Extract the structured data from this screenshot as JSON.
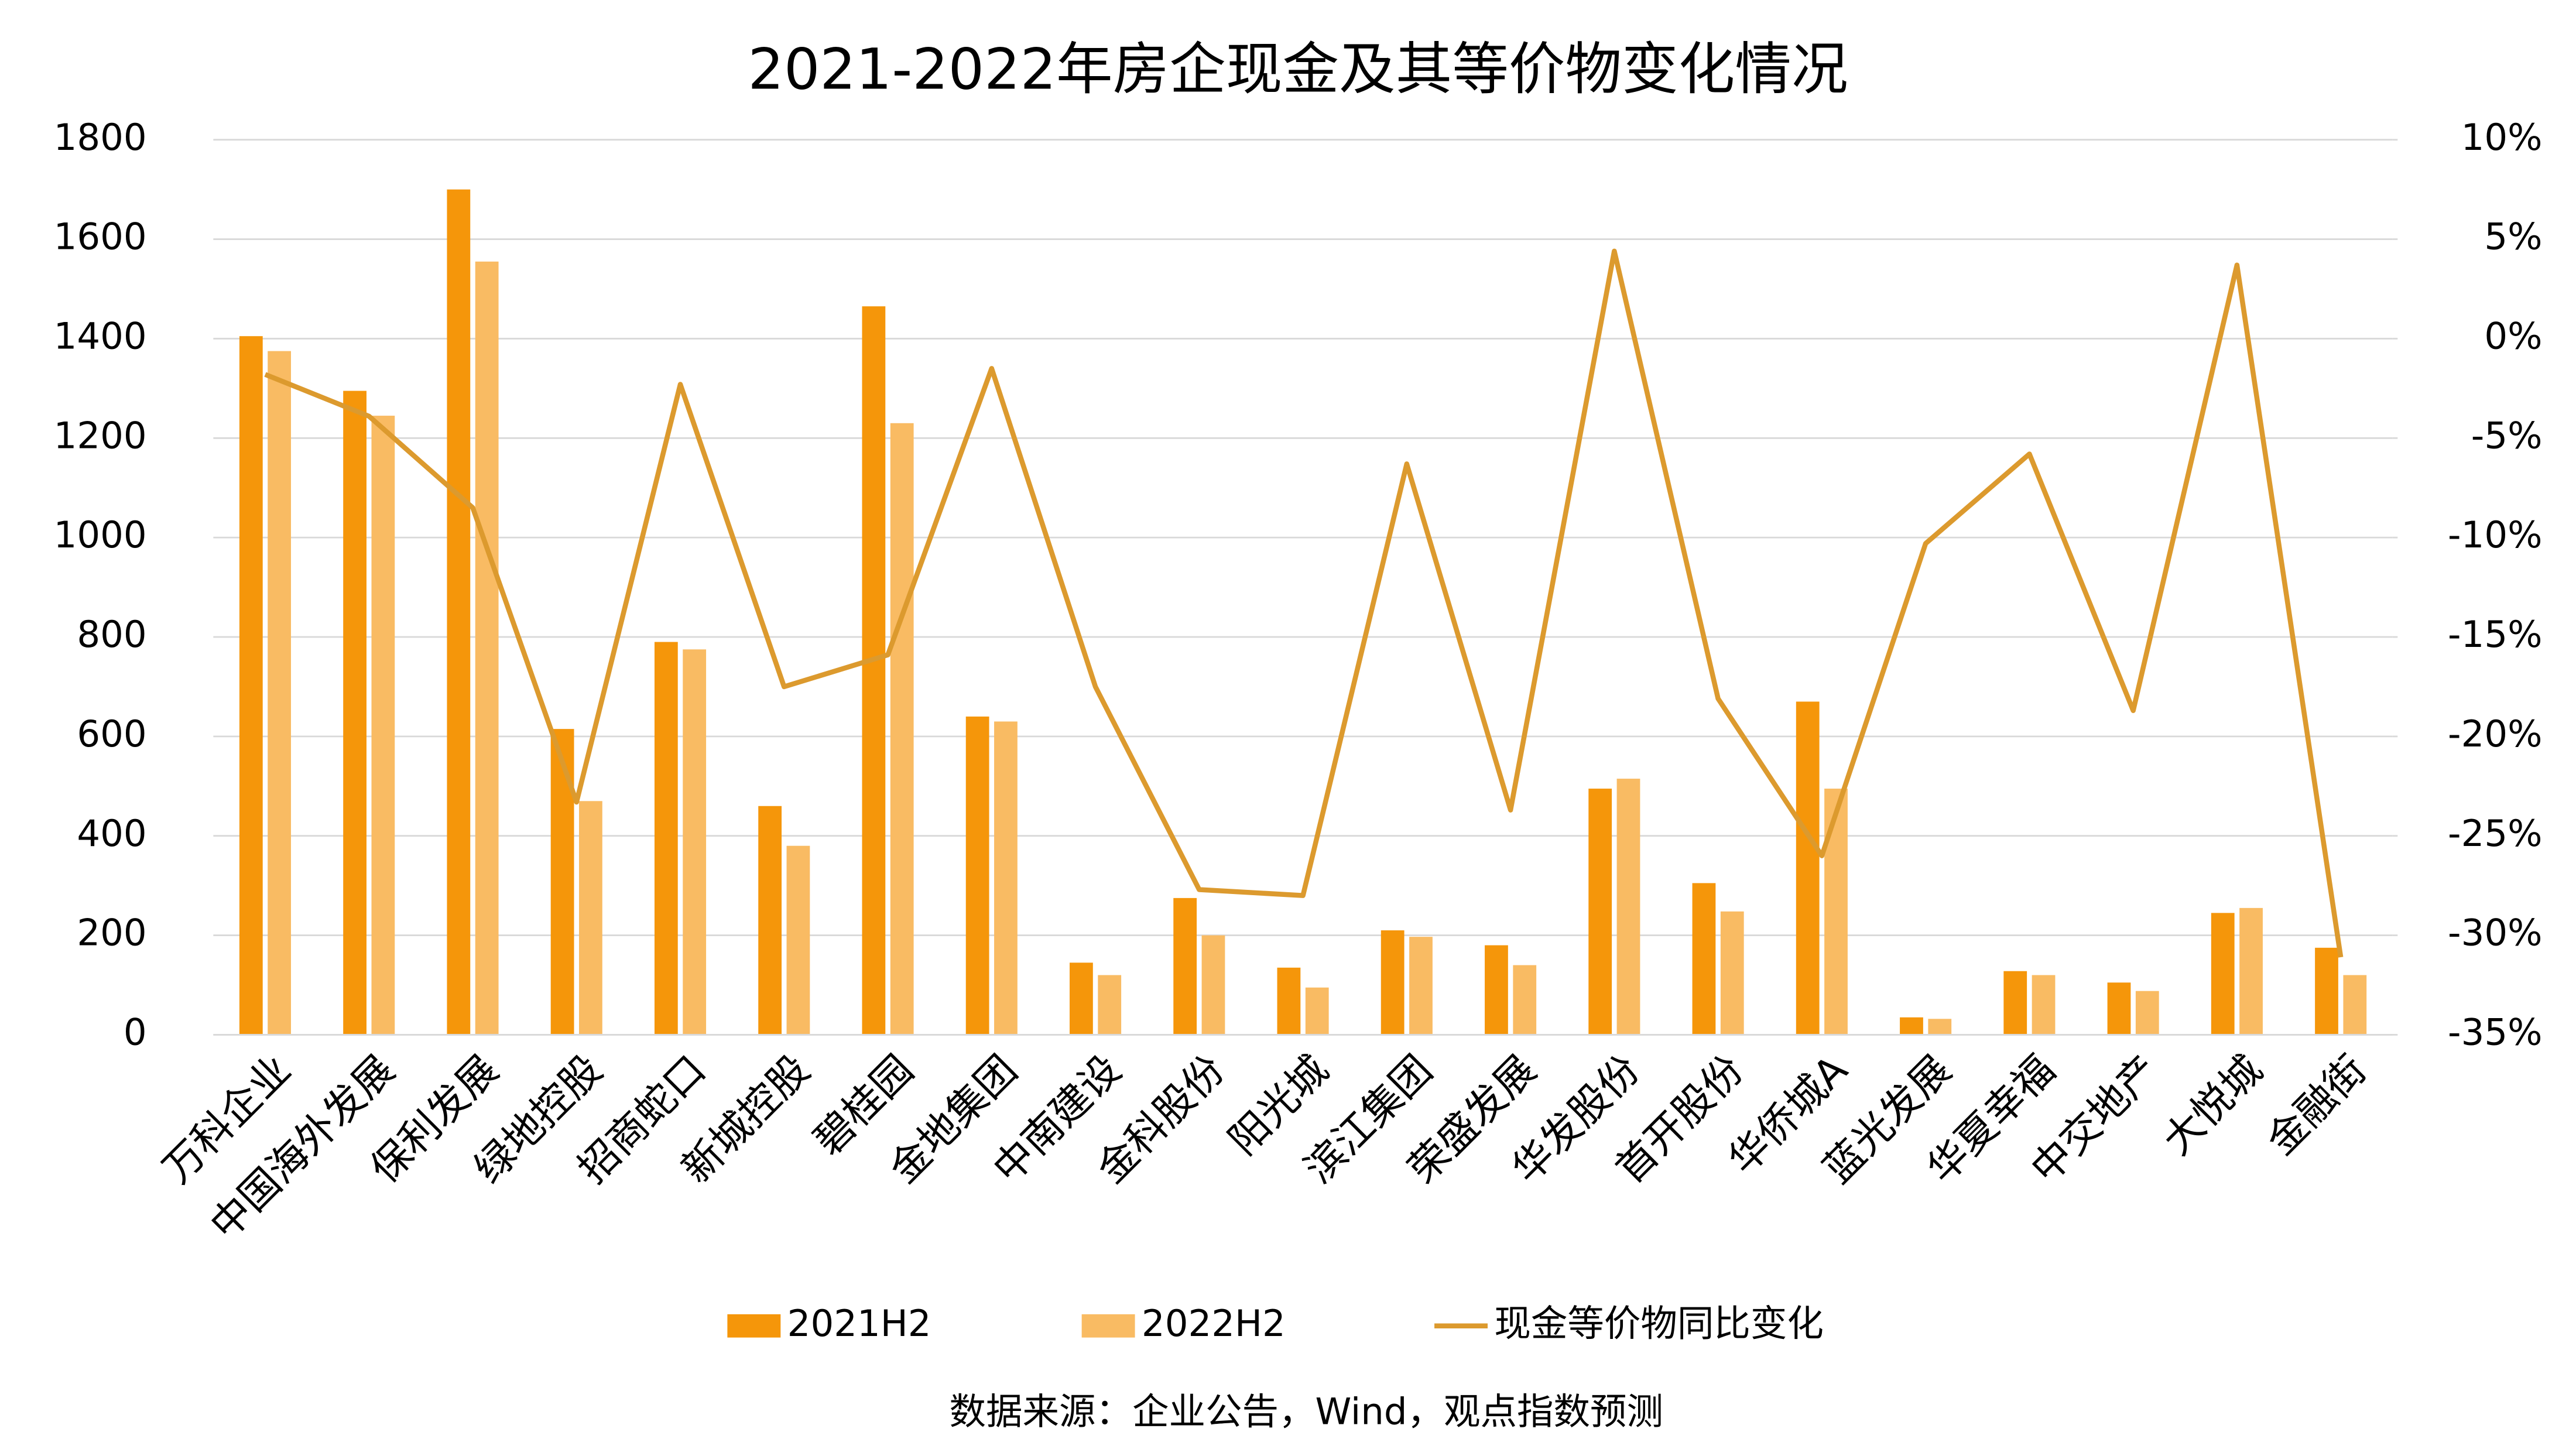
{
  "chart_data": {
    "type": "bar",
    "title": "2021-2022年房企现金及其等价物变化情况",
    "source": "数据来源：企业公告，Wind，观点指数预测",
    "categories": [
      "万科企业",
      "中国海外发展",
      "保利发展",
      "绿地控股",
      "招商蛇口",
      "新城控股",
      "碧桂园",
      "金地集团",
      "中南建设",
      "金科股份",
      "阳光城",
      "滨江集团",
      "荣盛发展",
      "华发股份",
      "首开股份",
      "华侨城A",
      "蓝光发展",
      "华夏幸福",
      "中交地产",
      "大悦城",
      "金融街"
    ],
    "series": [
      {
        "name": "2021H2",
        "type": "bar",
        "color": "#f5960a",
        "values": [
          1405,
          1295,
          1700,
          615,
          790,
          460,
          1465,
          640,
          145,
          275,
          135,
          210,
          180,
          495,
          305,
          670,
          35,
          128,
          105,
          245,
          175
        ]
      },
      {
        "name": "2022H2",
        "type": "bar",
        "color": "#f9bb63",
        "values": [
          1375,
          1245,
          1555,
          470,
          775,
          380,
          1230,
          630,
          120,
          200,
          95,
          197,
          140,
          515,
          248,
          495,
          32,
          120,
          88,
          255,
          120
        ]
      },
      {
        "name": "现金等价物同比变化",
        "type": "line",
        "axis": "y2",
        "color": "#dc9a2e",
        "values": [
          -1.8,
          -3.9,
          -8.5,
          -23.3,
          -2.3,
          -17.5,
          -15.9,
          -1.5,
          -17.5,
          -27.7,
          -28.0,
          -6.3,
          -23.7,
          4.4,
          -18.1,
          -26.0,
          -10.3,
          -5.8,
          -18.7,
          3.7,
          -31.1
        ]
      }
    ],
    "ylim": [
      0,
      1800
    ],
    "yticks": [
      0,
      200,
      400,
      600,
      800,
      1000,
      1200,
      1400,
      1600,
      1800
    ],
    "y2lim": [
      -35,
      10
    ],
    "y2ticks": [
      {
        "value": -35,
        "label": "-35%"
      },
      {
        "value": -30,
        "label": "-30%"
      },
      {
        "value": -25,
        "label": "-25%"
      },
      {
        "value": -20,
        "label": "-20%"
      },
      {
        "value": -15,
        "label": "-15%"
      },
      {
        "value": -10,
        "label": "-10%"
      },
      {
        "value": -5,
        "label": "-5%"
      },
      {
        "value": 0,
        "label": "0%"
      },
      {
        "value": 5,
        "label": "5%"
      },
      {
        "value": 10,
        "label": "10%"
      }
    ],
    "grid": true,
    "legend": "bottom"
  }
}
